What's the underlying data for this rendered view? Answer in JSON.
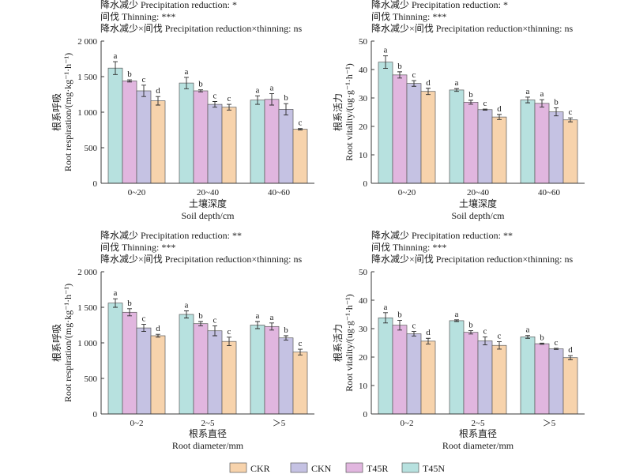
{
  "legend": [
    {
      "name": "CKR",
      "color": "#f7d3ac"
    },
    {
      "name": "CKN",
      "color": "#c5c2e3"
    },
    {
      "name": "T45R",
      "color": "#e1b6df"
    },
    {
      "name": "T45N",
      "color": "#b7e1df"
    }
  ],
  "chart_data": [
    {
      "type": "bar",
      "grid": false,
      "legend_position": "bottom",
      "annotations": [
        "降水减少 Precipitation reduction: *",
        "间伐 Thinning: ***",
        "降水减少×间伐 Precipitation reduction×thinning: ns"
      ],
      "ylabel_zh": "根系呼吸",
      "ylabel": "Root respiration/(mg·kg⁻¹·h⁻¹)",
      "xlabel_zh": "土壤深度",
      "xlabel": "Soil depth/cm",
      "categories": [
        "0~20",
        "20~40",
        "40~60"
      ],
      "ylim": [
        0,
        2000
      ],
      "yticks": [
        0,
        500,
        1000,
        1500,
        2000
      ],
      "ytick_labels": [
        "0",
        "500",
        "1 000",
        "1 500",
        "2 000"
      ],
      "series": [
        {
          "name": "T45N",
          "values": [
            1620,
            1410,
            1170
          ],
          "errors": [
            90,
            80,
            60
          ],
          "letters": [
            "a",
            "a",
            "a"
          ]
        },
        {
          "name": "T45R",
          "values": [
            1440,
            1300,
            1180
          ],
          "errors": [
            15,
            15,
            80
          ],
          "letters": [
            "b",
            "b",
            "a"
          ]
        },
        {
          "name": "CKN",
          "values": [
            1300,
            1110,
            1040
          ],
          "errors": [
            80,
            40,
            80
          ],
          "letters": [
            "c",
            "c",
            "b"
          ]
        },
        {
          "name": "CKR",
          "values": [
            1160,
            1070,
            760
          ],
          "errors": [
            60,
            40,
            10
          ],
          "letters": [
            "d",
            "c",
            "c"
          ]
        }
      ]
    },
    {
      "type": "bar",
      "grid": false,
      "legend_position": "bottom",
      "annotations": [
        "降水减少 Precipitation reduction: *",
        "间伐 Thinning: ***",
        "降水减少×间伐 Precipitation reduction×thinning: ns"
      ],
      "ylabel_zh": "根系活力",
      "ylabel": "Root vitality/(ug·g⁻¹·h⁻¹)",
      "xlabel_zh": "土壤深度",
      "xlabel": "Soil depth/cm",
      "categories": [
        "0~20",
        "20~40",
        "40~60"
      ],
      "ylim": [
        0,
        50
      ],
      "yticks": [
        0,
        10,
        20,
        30,
        40,
        50
      ],
      "ytick_labels": [
        "0",
        "10",
        "20",
        "30",
        "40",
        "50"
      ],
      "series": [
        {
          "name": "T45N",
          "values": [
            42.6,
            32.8,
            29.3
          ],
          "errors": [
            2.2,
            0.5,
            1.0
          ],
          "letters": [
            "a",
            "a",
            "a"
          ]
        },
        {
          "name": "T45R",
          "values": [
            38.1,
            28.5,
            28.1
          ],
          "errors": [
            1.1,
            0.7,
            1.3
          ],
          "letters": [
            "b",
            "b",
            "a"
          ]
        },
        {
          "name": "CKN",
          "values": [
            35.1,
            25.9,
            25.1
          ],
          "errors": [
            1.0,
            0.2,
            1.4
          ],
          "letters": [
            "c",
            "c",
            "b"
          ]
        },
        {
          "name": "CKR",
          "values": [
            32.3,
            23.3,
            22.3
          ],
          "errors": [
            1.1,
            0.9,
            0.7
          ],
          "letters": [
            "d",
            "d",
            "c"
          ]
        }
      ]
    },
    {
      "type": "bar",
      "grid": false,
      "legend_position": "bottom",
      "annotations": [
        "降水减少 Precipitation reduction: **",
        "间伐 Thinning: ***",
        "降水减少×间伐 Precipitation reduction×thinning: ns"
      ],
      "ylabel_zh": "根系呼吸",
      "ylabel": "Root respiration/(mg·kg⁻¹·h⁻¹)",
      "xlabel_zh": "根系直径",
      "xlabel": "Root diameter/mm",
      "categories": [
        "0~2",
        "2~5",
        "＞5"
      ],
      "ylim": [
        0,
        2000
      ],
      "yticks": [
        0,
        500,
        1000,
        1500,
        2000
      ],
      "ytick_labels": [
        "0",
        "500",
        "1 000",
        "1 500",
        "2 000"
      ],
      "series": [
        {
          "name": "T45N",
          "values": [
            1560,
            1400,
            1250
          ],
          "errors": [
            60,
            50,
            50
          ],
          "letters": [
            "a",
            "a",
            "a"
          ]
        },
        {
          "name": "T45R",
          "values": [
            1430,
            1270,
            1230
          ],
          "errors": [
            50,
            30,
            50
          ],
          "letters": [
            "b",
            "b",
            "a"
          ]
        },
        {
          "name": "CKN",
          "values": [
            1210,
            1170,
            1070
          ],
          "errors": [
            50,
            70,
            30
          ],
          "letters": [
            "c",
            "c",
            "b"
          ]
        },
        {
          "name": "CKR",
          "values": [
            1100,
            1020,
            870
          ],
          "errors": [
            20,
            60,
            40
          ],
          "letters": [
            "d",
            "c",
            "c"
          ]
        }
      ]
    },
    {
      "type": "bar",
      "grid": false,
      "legend_position": "bottom",
      "annotations": [
        "降水减少 Precipitation reduction: **",
        "间伐 Thinning: ***",
        "降水减少×间伐 Precipitation reduction×thinning: ns"
      ],
      "ylabel_zh": "根系活力",
      "ylabel": "Root vitality/(ug·g⁻¹·h⁻¹)",
      "xlabel_zh": "根系直径",
      "xlabel": "Root diameter/mm",
      "categories": [
        "0~2",
        "2~5",
        "＞5"
      ],
      "ylim": [
        0,
        50
      ],
      "yticks": [
        0,
        10,
        20,
        30,
        40,
        50
      ],
      "ytick_labels": [
        "0",
        "10",
        "20",
        "30",
        "40",
        "50"
      ],
      "series": [
        {
          "name": "T45N",
          "values": [
            33.8,
            32.8,
            27.1
          ],
          "errors": [
            1.8,
            0.3,
            0.5
          ],
          "letters": [
            "a",
            "a",
            "a"
          ]
        },
        {
          "name": "T45R",
          "values": [
            31.2,
            28.7,
            24.7
          ],
          "errors": [
            1.7,
            0.6,
            0.2
          ],
          "letters": [
            "b",
            "b",
            "b"
          ]
        },
        {
          "name": "CKN",
          "values": [
            28.2,
            25.7,
            22.9
          ],
          "errors": [
            0.8,
            1.4,
            0.2
          ],
          "letters": [
            "c",
            "c",
            "c"
          ]
        },
        {
          "name": "CKR",
          "values": [
            25.6,
            24.1,
            19.8
          ],
          "errors": [
            1.0,
            1.3,
            0.7
          ],
          "letters": [
            "d",
            "c",
            "d"
          ]
        }
      ]
    }
  ]
}
